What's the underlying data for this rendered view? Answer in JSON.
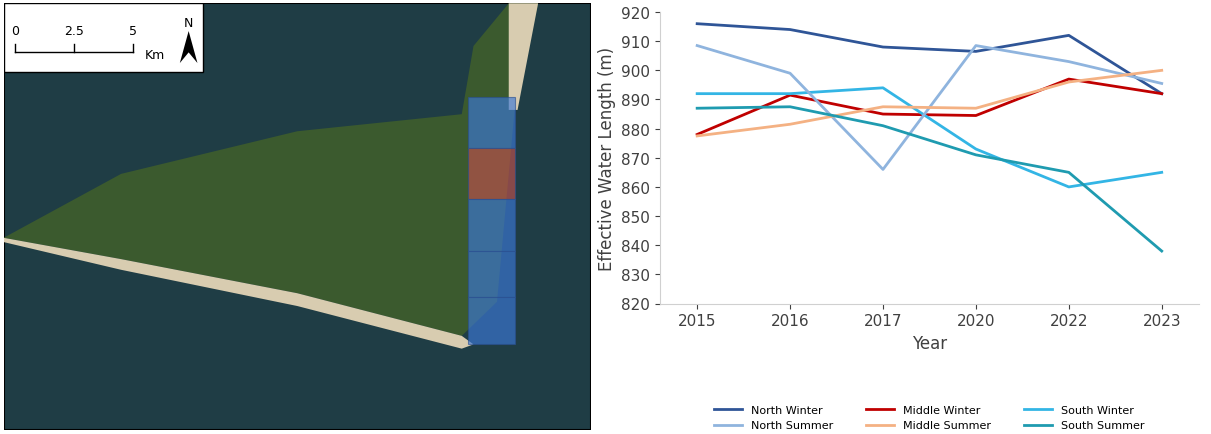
{
  "map": {
    "scale_labels": [
      0,
      2.5,
      5
    ],
    "scale_unit": "Km",
    "north_label": "N"
  },
  "chart_data": {
    "type": "line",
    "x_label": "Year",
    "y_label": "Effective Water Length (m)",
    "categories": [
      "2015",
      "2016",
      "2017",
      "2020",
      "2022",
      "2023"
    ],
    "ylim": [
      820,
      920
    ],
    "yticks": [
      820,
      830,
      840,
      850,
      860,
      870,
      880,
      890,
      900,
      910,
      920
    ],
    "legend": "lower center",
    "grid": false,
    "series": [
      {
        "name": "North Winter",
        "color": "#2f5597",
        "values": [
          916,
          914,
          908,
          906.5,
          912,
          892
        ]
      },
      {
        "name": "Middle Winter",
        "color": "#c00000",
        "values": [
          878,
          891.5,
          885,
          884.5,
          897,
          892
        ]
      },
      {
        "name": "South Winter",
        "color": "#33b5e5",
        "values": [
          892,
          892,
          894,
          873,
          860,
          865
        ]
      },
      {
        "name": "North Summer",
        "color": "#8fb4de",
        "values": [
          908.5,
          899,
          866,
          908.5,
          903,
          895.5
        ]
      },
      {
        "name": "Middle Summer",
        "color": "#f4b183",
        "values": [
          877.5,
          881.5,
          887.5,
          887,
          896,
          900
        ]
      },
      {
        "name": "South Summer",
        "color": "#1f9bb0",
        "values": [
          887,
          887.5,
          881,
          871,
          865,
          838
        ]
      }
    ]
  }
}
